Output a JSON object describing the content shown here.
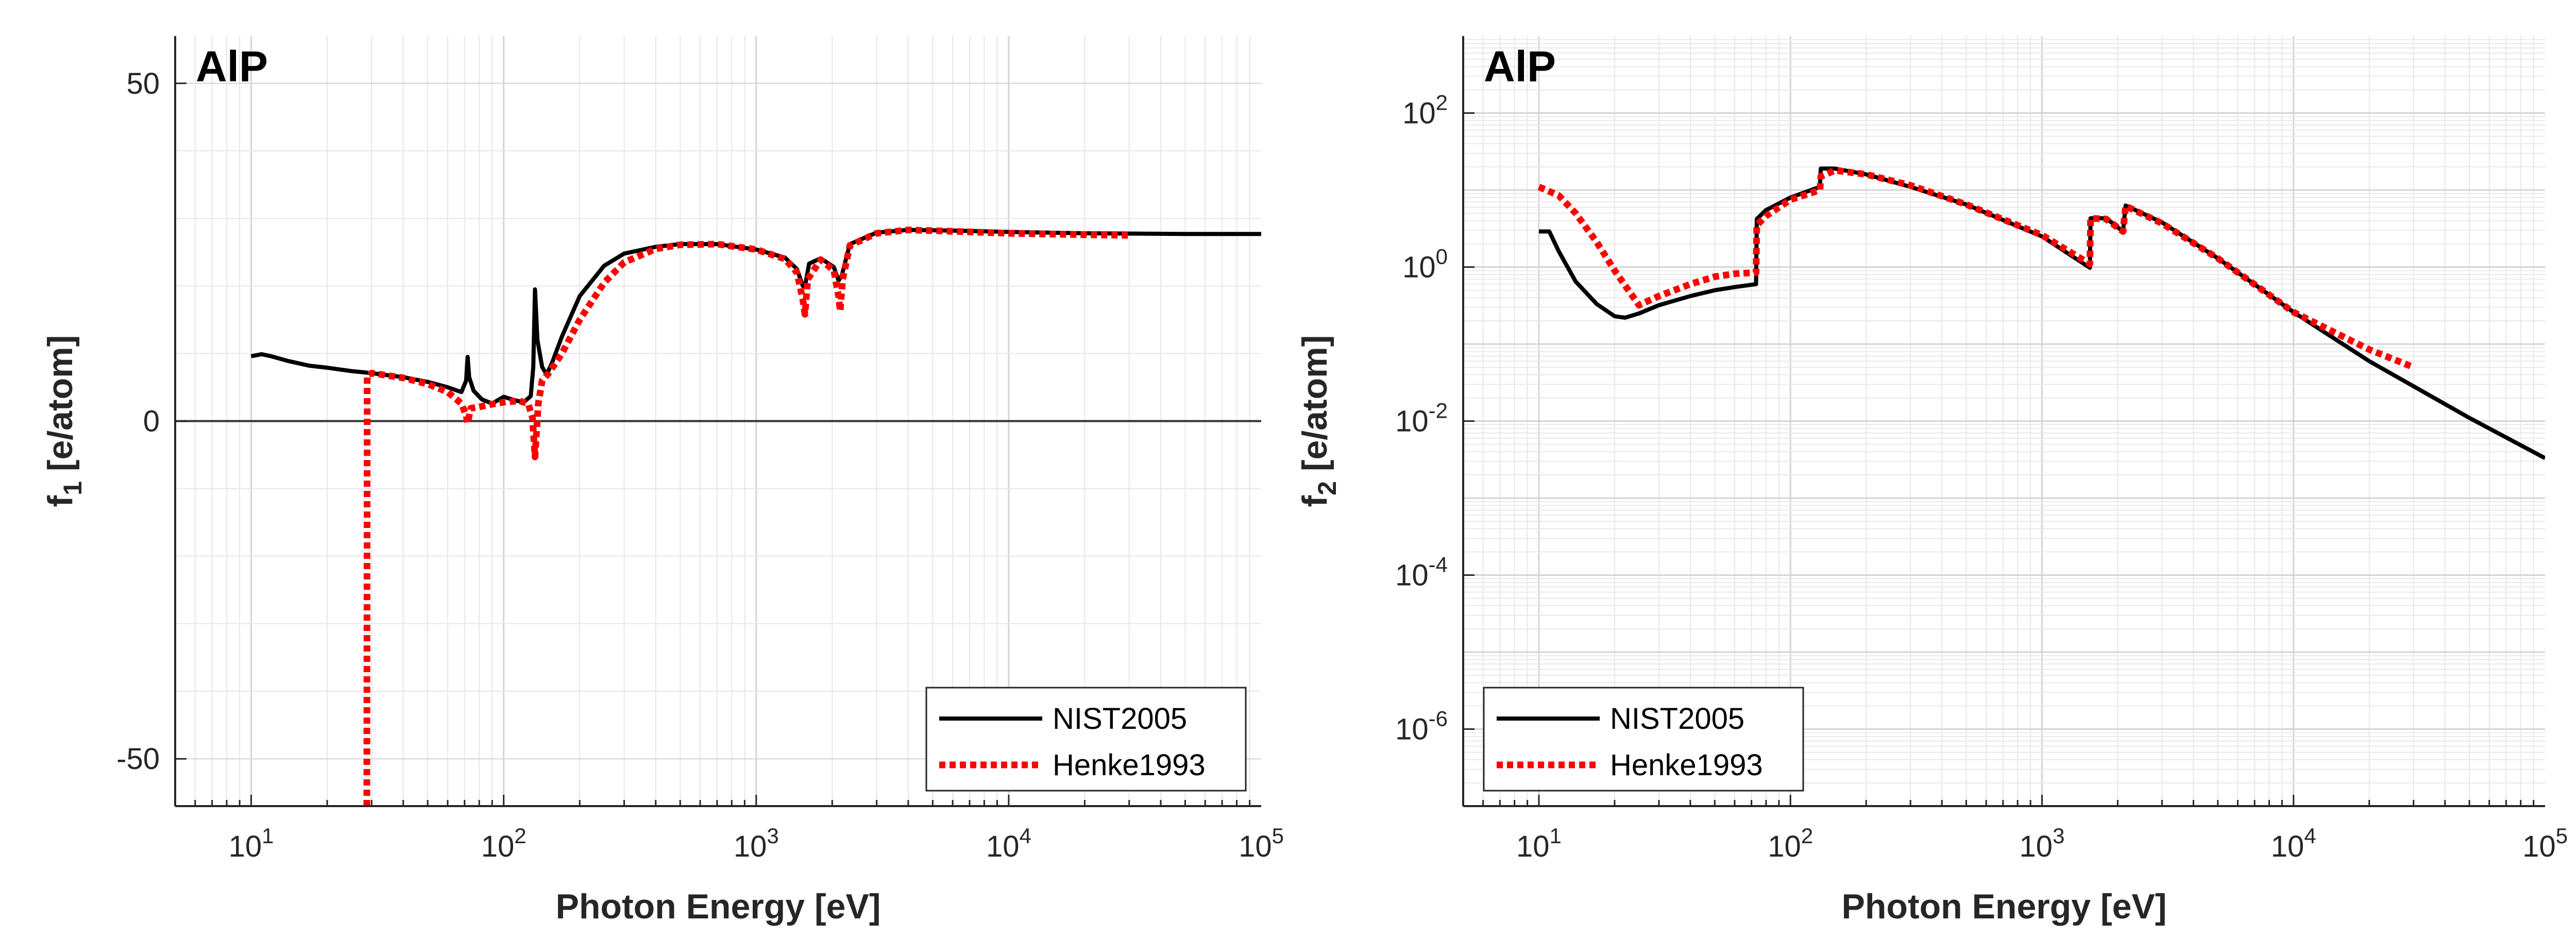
{
  "chart_data": [
    {
      "type": "line",
      "panel_label": "AlP",
      "xlabel": "Photon Energy [eV]",
      "ylabel": "f",
      "ylabel_sub": "1",
      "ylabel_suffix": " [e/atom]",
      "xscale": "log",
      "yscale": "linear",
      "xlim": [
        5,
        100000
      ],
      "ylim": [
        -57,
        57
      ],
      "grid": true,
      "legend_position": "bottom-right",
      "x_ticks": [
        {
          "base": "10",
          "exp": "1",
          "value": 10
        },
        {
          "base": "10",
          "exp": "2",
          "value": 100
        },
        {
          "base": "10",
          "exp": "3",
          "value": 1000
        },
        {
          "base": "10",
          "exp": "4",
          "value": 10000
        },
        {
          "base": "10",
          "exp": "5",
          "value": 100000
        }
      ],
      "y_ticks": [
        {
          "label": "50",
          "value": 50
        },
        {
          "label": "0",
          "value": 0
        },
        {
          "label": "-50",
          "value": -50
        }
      ],
      "zero_line": true,
      "series": [
        {
          "name": "NIST2005",
          "color": "#000000",
          "style": "solid",
          "points": [
            [
              10,
              9.6
            ],
            [
              11,
              9.9
            ],
            [
              12,
              9.6
            ],
            [
              14,
              8.9
            ],
            [
              17,
              8.2
            ],
            [
              20,
              7.9
            ],
            [
              25,
              7.4
            ],
            [
              30,
              7.1
            ],
            [
              40,
              6.5
            ],
            [
              50,
              5.8
            ],
            [
              60,
              5
            ],
            [
              68,
              4.3
            ],
            [
              71,
              6
            ],
            [
              72,
              9.5
            ],
            [
              73,
              6.5
            ],
            [
              76,
              4.5
            ],
            [
              82,
              3.2
            ],
            [
              90,
              2.6
            ],
            [
              100,
              3.6
            ],
            [
              110,
              3.1
            ],
            [
              120,
              2.8
            ],
            [
              128,
              3.7
            ],
            [
              131,
              8
            ],
            [
              133,
              19.5
            ],
            [
              136,
              12
            ],
            [
              142,
              8
            ],
            [
              148,
              6.9
            ],
            [
              155,
              8.5
            ],
            [
              170,
              12.5
            ],
            [
              200,
              18.5
            ],
            [
              250,
              23
            ],
            [
              300,
              24.8
            ],
            [
              400,
              25.8
            ],
            [
              500,
              26.2
            ],
            [
              700,
              26.2
            ],
            [
              1000,
              25.4
            ],
            [
              1300,
              24.2
            ],
            [
              1450,
              22.5
            ],
            [
              1530,
              20
            ],
            [
              1570,
              20.5
            ],
            [
              1620,
              23.3
            ],
            [
              1800,
              24.1
            ],
            [
              2030,
              22.8
            ],
            [
              2120,
              20.8
            ],
            [
              2180,
              21.5
            ],
            [
              2350,
              26.2
            ],
            [
              3000,
              27.9
            ],
            [
              4000,
              28.3
            ],
            [
              6000,
              28.2
            ],
            [
              10000,
              28
            ],
            [
              20000,
              27.8
            ],
            [
              50000,
              27.7
            ],
            [
              100000,
              27.7
            ]
          ]
        },
        {
          "name": "Henke1993",
          "color": "#ff0000",
          "style": "dotted",
          "points": [
            [
              28.7,
              -57
            ],
            [
              28.8,
              6.8
            ],
            [
              30,
              7.1
            ],
            [
              40,
              6.4
            ],
            [
              50,
              5.5
            ],
            [
              60,
              4.3
            ],
            [
              68,
              2.6
            ],
            [
              71,
              0.8
            ],
            [
              72,
              -0.3
            ],
            [
              74,
              1.9
            ],
            [
              80,
              2.1
            ],
            [
              90,
              2.5
            ],
            [
              100,
              2.8
            ],
            [
              115,
              3
            ],
            [
              125,
              2.6
            ],
            [
              130,
              0.5
            ],
            [
              133,
              -5.3
            ],
            [
              137,
              2.5
            ],
            [
              142,
              6
            ],
            [
              150,
              7
            ],
            [
              170,
              10
            ],
            [
              200,
              15
            ],
            [
              250,
              20.5
            ],
            [
              300,
              23.5
            ],
            [
              400,
              25.5
            ],
            [
              500,
              26.1
            ],
            [
              700,
              26.2
            ],
            [
              1000,
              25.4
            ],
            [
              1300,
              24
            ],
            [
              1450,
              22
            ],
            [
              1530,
              18
            ],
            [
              1560,
              15.8
            ],
            [
              1600,
              21
            ],
            [
              1800,
              23.9
            ],
            [
              2030,
              22.3
            ],
            [
              2120,
              18.5
            ],
            [
              2150,
              16.3
            ],
            [
              2200,
              21
            ],
            [
              2350,
              26
            ],
            [
              3000,
              27.8
            ],
            [
              4000,
              28.3
            ],
            [
              6000,
              28.1
            ],
            [
              10000,
              27.8
            ],
            [
              20000,
              27.6
            ],
            [
              30000,
              27.5
            ]
          ]
        }
      ]
    },
    {
      "type": "line",
      "panel_label": "AlP",
      "xlabel": "Photon Energy [eV]",
      "ylabel": "f",
      "ylabel_sub": "2",
      "ylabel_suffix": " [e/atom]",
      "xscale": "log",
      "yscale": "log",
      "xlim": [
        5,
        100000
      ],
      "ylim": [
        1e-07,
        1000
      ],
      "grid": true,
      "legend_position": "bottom-left",
      "x_ticks": [
        {
          "base": "10",
          "exp": "1",
          "value": 10
        },
        {
          "base": "10",
          "exp": "2",
          "value": 100
        },
        {
          "base": "10",
          "exp": "3",
          "value": 1000
        },
        {
          "base": "10",
          "exp": "4",
          "value": 10000
        },
        {
          "base": "10",
          "exp": "5",
          "value": 100000
        }
      ],
      "y_ticks": [
        {
          "base": "10",
          "exp": "2",
          "value": 100
        },
        {
          "base": "10",
          "exp": "0",
          "value": 1
        },
        {
          "base": "10",
          "exp": "-2",
          "value": 0.01
        },
        {
          "base": "10",
          "exp": "-4",
          "value": 0.0001
        },
        {
          "base": "10",
          "exp": "-6",
          "value": 1e-06
        }
      ],
      "series": [
        {
          "name": "NIST2005",
          "color": "#000000",
          "style": "solid",
          "points": [
            [
              10,
              2.9
            ],
            [
              11,
              2.9
            ],
            [
              12,
              1.6
            ],
            [
              14,
              0.65
            ],
            [
              17,
              0.33
            ],
            [
              20,
              0.23
            ],
            [
              22,
              0.22
            ],
            [
              25,
              0.25
            ],
            [
              30,
              0.32
            ],
            [
              40,
              0.42
            ],
            [
              50,
              0.5
            ],
            [
              60,
              0.55
            ],
            [
              73,
              0.6
            ],
            [
              73.5,
              4.2
            ],
            [
              80,
              5.5
            ],
            [
              100,
              8
            ],
            [
              131,
              11
            ],
            [
              132,
              19
            ],
            [
              150,
              19
            ],
            [
              200,
              16
            ],
            [
              300,
              11
            ],
            [
              500,
              6.5
            ],
            [
              1000,
              2.5
            ],
            [
              1550,
              0.98
            ],
            [
              1560,
              4.3
            ],
            [
              1800,
              4.3
            ],
            [
              2100,
              2.9
            ],
            [
              2150,
              6.3
            ],
            [
              3000,
              3.8
            ],
            [
              5000,
              1.3
            ],
            [
              10000,
              0.26
            ],
            [
              20000,
              0.06
            ],
            [
              50000,
              0.011
            ],
            [
              100000,
              0.0033
            ]
          ]
        },
        {
          "name": "Henke1993",
          "color": "#ff0000",
          "style": "dotted",
          "points": [
            [
              10,
              11
            ],
            [
              12,
              8.5
            ],
            [
              14,
              5
            ],
            [
              17,
              2.1
            ],
            [
              20,
              0.9
            ],
            [
              23,
              0.47
            ],
            [
              25,
              0.32
            ],
            [
              30,
              0.42
            ],
            [
              40,
              0.6
            ],
            [
              50,
              0.75
            ],
            [
              60,
              0.82
            ],
            [
              73,
              0.85
            ],
            [
              73.5,
              3.5
            ],
            [
              80,
              4.6
            ],
            [
              100,
              7.5
            ],
            [
              131,
              10
            ],
            [
              132,
              15
            ],
            [
              150,
              18
            ],
            [
              200,
              16
            ],
            [
              300,
              11.5
            ],
            [
              500,
              6.5
            ],
            [
              1000,
              2.6
            ],
            [
              1550,
              1.1
            ],
            [
              1560,
              4.3
            ],
            [
              1800,
              4.2
            ],
            [
              2100,
              2.9
            ],
            [
              2150,
              6.2
            ],
            [
              3000,
              3.7
            ],
            [
              5000,
              1.3
            ],
            [
              10000,
              0.26
            ],
            [
              20000,
              0.085
            ],
            [
              30000,
              0.05
            ]
          ]
        }
      ]
    }
  ]
}
